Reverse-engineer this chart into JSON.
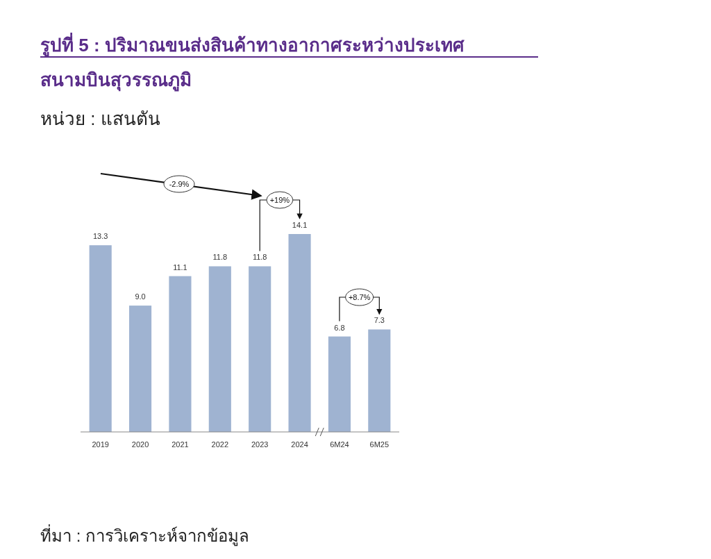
{
  "chart_data": {
    "type": "bar",
    "title": "รูปที่ 5 : ปริมาณขนส่งสินค้าทางอากาศระหว่างประเทศ สนามบินสุวรรณภูมิ",
    "subtitle": "หน่วย : แสนตัน",
    "categories": [
      "2019",
      "2020",
      "2021",
      "2022",
      "2023",
      "2024",
      "6M24",
      "6M25"
    ],
    "values": [
      13.3,
      9.0,
      11.1,
      11.8,
      11.8,
      14.1,
      6.8,
      7.3
    ],
    "color": "#9fb3d1",
    "value_labels": [
      "13.3",
      "9.0",
      "11.1",
      "11.8",
      "11.8",
      "14.1",
      "6.8",
      "7.3"
    ],
    "annotations": [
      "-2.9%",
      "+19%",
      "+8.7%",
      "ที่มา : การวิเคราะห์จากข้อมูล"
    ]
  }
}
